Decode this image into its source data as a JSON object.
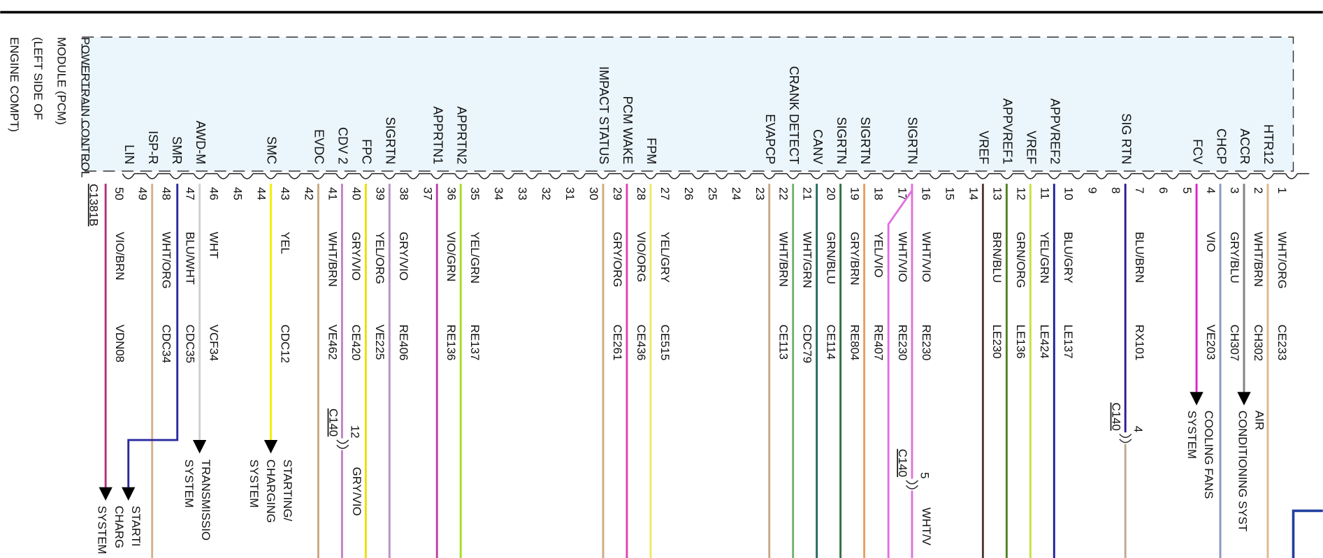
{
  "module": {
    "lines": [
      "POWERTRAIN CONTROL",
      "MODULE (PCM)",
      "(LEFT SIDE OF",
      "ENGINE COMPT)"
    ]
  },
  "connector": "C1381B",
  "pins": [
    {
      "number": 50,
      "signal": "LIN",
      "wires": [
        {
          "color": "VIO/BRN",
          "circuit": "VDN08",
          "hex": "#b0307a"
        }
      ]
    },
    {
      "number": 49,
      "signal": "ISP-R",
      "wires": [
        {
          "color": "WHT/ORG",
          "circuit": "CDC34",
          "hex": "#d8b08c"
        }
      ]
    },
    {
      "number": 48,
      "signal": "SMR",
      "wires": [
        {
          "color": "BLU/WHT",
          "circuit": "CDC35",
          "hex": "#2a2aa0"
        }
      ]
    },
    {
      "number": 47,
      "signal": "AWD-M",
      "wires": [
        {
          "color": "WHT",
          "circuit": "VCF34",
          "hex": "#d0d0d0"
        }
      ]
    },
    {
      "number": 46
    },
    {
      "number": 45
    },
    {
      "number": 44,
      "signal": "SMC",
      "wires": [
        {
          "color": "YEL",
          "circuit": "CDC12",
          "hex": "#f2ee00"
        }
      ]
    },
    {
      "number": 43
    },
    {
      "number": 42,
      "signal": "EVDC",
      "wires": [
        {
          "color": "WHT/BRN",
          "circuit": "VE462",
          "hex": "#c8a880"
        }
      ]
    },
    {
      "number": 41,
      "signal": "CDV 2",
      "wires": [
        {
          "color": "GRY/VIO",
          "circuit": "CE420",
          "hex": "#c080c8"
        }
      ]
    },
    {
      "number": 40,
      "signal": "FPC",
      "wires": [
        {
          "color": "YEL/ORG",
          "circuit": "VE225",
          "hex": "#f0dc00"
        }
      ]
    },
    {
      "number": 39,
      "signal": "SIGRTN",
      "wires": [
        {
          "color": "GRY/VIO",
          "circuit": "RE406",
          "hex": "#b890c8"
        }
      ]
    },
    {
      "number": 38
    },
    {
      "number": 37,
      "signal": "APPRTN1",
      "wires": [
        {
          "color": "VIO/GRN",
          "circuit": "RE136",
          "hex": "#c040a0"
        }
      ]
    },
    {
      "number": 36,
      "signal": "APPRTN2",
      "wires": [
        {
          "color": "YEL/GRN",
          "circuit": "RE137",
          "hex": "#a0e020"
        }
      ]
    },
    {
      "number": 35
    },
    {
      "number": 34
    },
    {
      "number": 33
    },
    {
      "number": 32
    },
    {
      "number": 31
    },
    {
      "number": 30,
      "signal": "IMPACT STATUS",
      "wires": [
        {
          "color": "GRY/ORG",
          "circuit": "CE261",
          "hex": "#d0a880"
        }
      ]
    },
    {
      "number": 29,
      "signal": "PCM WAKE",
      "wires": [
        {
          "color": "VIO/ORG",
          "circuit": "CE436",
          "hex": "#e040b0"
        }
      ]
    },
    {
      "number": 28,
      "signal": "FPM",
      "wires": [
        {
          "color": "YEL/GRY",
          "circuit": "CE515",
          "hex": "#f0e860"
        }
      ]
    },
    {
      "number": 27
    },
    {
      "number": 26
    },
    {
      "number": 25
    },
    {
      "number": 24
    },
    {
      "number": 23,
      "signal": "EVAPCP",
      "wires": [
        {
          "color": "WHT/BRN",
          "circuit": "CE113",
          "hex": "#c8a888"
        }
      ]
    },
    {
      "number": 22,
      "signal": "CRANK DETECT",
      "wires": [
        {
          "color": "WHT/GRN",
          "circuit": "CDC79",
          "hex": "#70b070"
        }
      ]
    },
    {
      "number": 21,
      "signal": "CANV",
      "wires": [
        {
          "color": "GRN/BLU",
          "circuit": "CE114",
          "hex": "#1e6a60"
        }
      ]
    },
    {
      "number": 20,
      "signal": "SIGRTN",
      "wires": [
        {
          "color": "GRY/BRN",
          "circuit": "RE804",
          "hex": "#307040"
        }
      ]
    },
    {
      "number": 19,
      "signal": "SIGRTN",
      "wires": [
        {
          "color": "YEL/VIO",
          "circuit": "RE407",
          "hex": "#e8a060"
        }
      ]
    },
    {
      "number": 18
    },
    {
      "number": 17,
      "signal": "SIGRTN",
      "wires": [
        {
          "color": "WHT/VIO",
          "circuit": "RE230",
          "hex": "#e070e0"
        },
        {
          "color": "WHT/VIO",
          "circuit": "RE230",
          "hex": "#e070e0"
        }
      ]
    },
    {
      "number": 16
    },
    {
      "number": 15
    },
    {
      "number": 14,
      "signal": "VREF",
      "wires": [
        {
          "color": "BRN/BLU",
          "circuit": "LE230",
          "hex": "#503830"
        }
      ]
    },
    {
      "number": 13,
      "signal": "APPVREF1",
      "wires": [
        {
          "color": "GRN/ORG",
          "circuit": "LE136",
          "hex": "#508020"
        }
      ]
    },
    {
      "number": 12,
      "signal": "VREF",
      "wires": [
        {
          "color": "YEL/GRN",
          "circuit": "LE424",
          "hex": "#c8e040"
        }
      ]
    },
    {
      "number": 11,
      "signal": "APPVREF2",
      "wires": [
        {
          "color": "BLU/GRY",
          "circuit": "LE137",
          "hex": "#2020a0"
        }
      ]
    },
    {
      "number": 10
    },
    {
      "number": 9
    },
    {
      "number": 8,
      "signal": "SIG RTN",
      "wires": [
        {
          "color": "BLU/BRN",
          "circuit": "RX101",
          "hex": "#301890"
        }
      ]
    },
    {
      "number": 7
    },
    {
      "number": 6
    },
    {
      "number": 5,
      "signal": "FCV",
      "wires": [
        {
          "color": "VIO",
          "circuit": "VE203",
          "hex": "#e020d0"
        }
      ]
    },
    {
      "number": 4,
      "signal": "CHCP",
      "wires": [
        {
          "color": "GRY/BLU",
          "circuit": "CH307",
          "hex": "#8898c0"
        }
      ]
    },
    {
      "number": 3,
      "signal": "ACCR",
      "wires": [
        {
          "color": "WHT/BRN",
          "circuit": "CH302",
          "hex": "#808080"
        }
      ]
    },
    {
      "number": 2,
      "signal": "HTR12",
      "wires": [
        {
          "color": "WHT/ORG",
          "circuit": "CE233",
          "hex": "#e0b890"
        }
      ]
    },
    {
      "number": 1
    }
  ],
  "inline_connectors": [
    {
      "name": "C140",
      "pin": 12,
      "wire_color": "GRY/VIO"
    },
    {
      "name": "C140",
      "pin": 4
    },
    {
      "name": "C140",
      "pin": 5,
      "wire_color": "WHT/V"
    }
  ],
  "destinations": [
    {
      "lines": [
        "STARTI",
        "CHARG",
        "SYSTEM"
      ]
    },
    {
      "lines": [
        "TRANSMISSIO",
        "SYSTEM"
      ]
    },
    {
      "lines": [
        "STARTING/",
        "CHARGING",
        "SYSTEM"
      ]
    },
    {
      "lines": [
        "COOLING FANS",
        "SYSTEM"
      ]
    },
    {
      "lines": [
        "AIR",
        "CONDITIONING SYST"
      ]
    }
  ]
}
